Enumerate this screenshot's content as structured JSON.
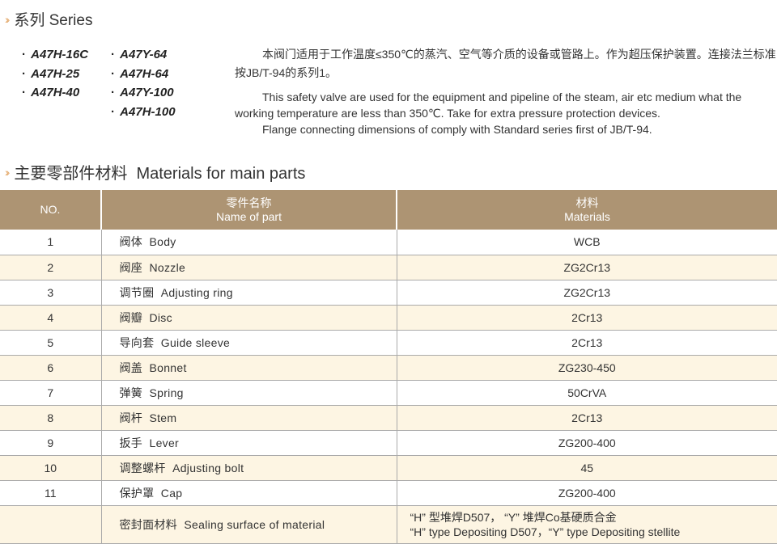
{
  "series_section": {
    "title": "系列 Series",
    "models_col1": [
      "A47H-16C",
      "A47H-25",
      "A47H-40"
    ],
    "models_col2": [
      "A47Y-64",
      "A47H-64",
      "A47Y-100",
      "A47H-100"
    ]
  },
  "description": {
    "zh": "本阀门适用于工作温度≤350℃的蒸汽、空气等介质的设备或管路上。作为超压保护装置。连接法兰标准按JB/T-94的系列1。",
    "en_line1": "This safety valve are used for the equipment and pipeline of the steam, air etc medium what the working temperature are less than 350℃. Take for extra pressure protection devices.",
    "en_line2": "Flange connecting dimensions of comply with Standard series first of JB/T-94."
  },
  "materials_section": {
    "title": "主要零部件材料  Materials for main parts"
  },
  "table": {
    "headers": {
      "no": "NO.",
      "name_zh": "零件名称",
      "name_en": "Name of part",
      "mat_zh": "材料",
      "mat_en": "Materials"
    },
    "rows": [
      {
        "no": "1",
        "name": "阀体  Body",
        "material": "WCB"
      },
      {
        "no": "2",
        "name": "阀座  Nozzle",
        "material": "ZG2Cr13"
      },
      {
        "no": "3",
        "name": "调节圈  Adjusting ring",
        "material": "ZG2Cr13"
      },
      {
        "no": "4",
        "name": "阀瓣  Disc",
        "material": "2Cr13"
      },
      {
        "no": "5",
        "name": "导向套  Guide sleeve",
        "material": "2Cr13"
      },
      {
        "no": "6",
        "name": "阀盖  Bonnet",
        "material": "ZG230-450"
      },
      {
        "no": "7",
        "name": "弹簧  Spring",
        "material": "50CrVA"
      },
      {
        "no": "8",
        "name": "阀杆  Stem",
        "material": "2Cr13"
      },
      {
        "no": "9",
        "name": "扳手  Lever",
        "material": "ZG200-400"
      },
      {
        "no": "10",
        "name": "调整螺杆  Adjusting bolt",
        "material": "45"
      },
      {
        "no": "11",
        "name": "保护罩  Cap",
        "material": "ZG200-400"
      }
    ],
    "last_row": {
      "no": "",
      "name": "密封面材料  Sealing surface of material",
      "material_zh": "“H” 型堆焊D507，  “Y” 堆焊Co基硬质合金",
      "material_en": "“H” type Depositing D507，“Y” type Depositing stellite"
    }
  },
  "colors": {
    "header_bg": "#ad9473",
    "alt_row": "#fdf5e3",
    "chevron": "#e3a868"
  }
}
